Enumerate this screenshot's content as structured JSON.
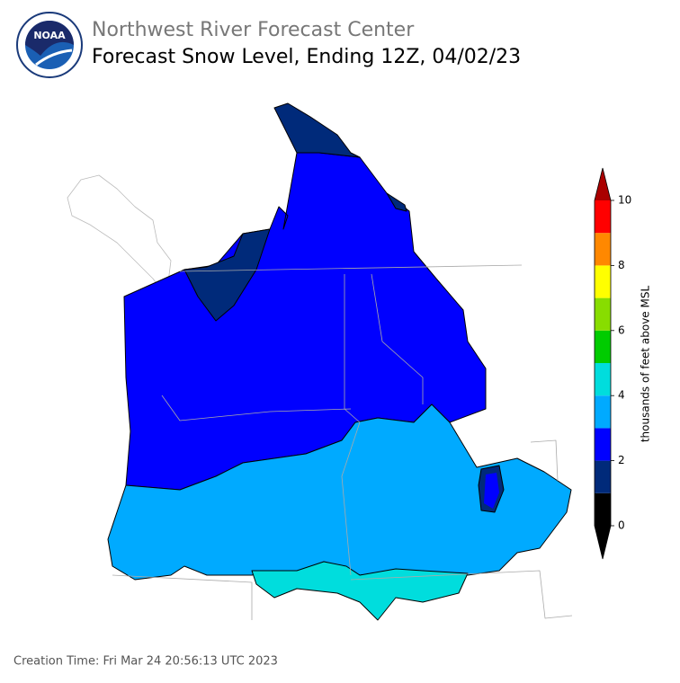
{
  "header": {
    "logo_text": "NOAA",
    "org": "Northwest River Forecast Center",
    "title": "Forecast Snow Level, Ending 12Z, 04/02/23"
  },
  "colorbar": {
    "label": "thousands of feet above MSL",
    "levels": [
      0,
      1,
      2,
      3,
      4,
      5,
      6,
      7,
      8,
      9,
      10
    ],
    "colors": [
      "#000000",
      "#002a7a",
      "#0000ff",
      "#00aaff",
      "#00dddd",
      "#00cc00",
      "#88dd00",
      "#ffff00",
      "#ff8800",
      "#ff0000"
    ],
    "under_color": "#000000",
    "over_color": "#aa0000",
    "ticks": [
      0,
      2,
      4,
      6,
      8,
      10
    ]
  },
  "footer": {
    "creation_time": "Creation Time: Fri Mar 24 20:56:13 UTC 2023"
  }
}
